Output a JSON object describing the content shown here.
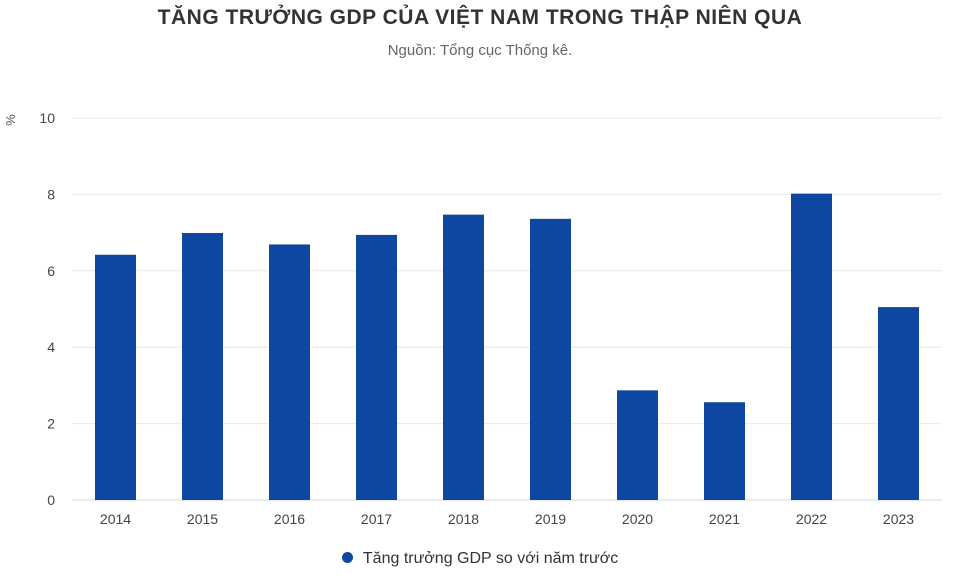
{
  "chart_data": {
    "type": "bar",
    "title": "TĂNG TRƯỞNG GDP CỦA VIỆT NAM TRONG THẬP NIÊN QUA",
    "subtitle": "Nguồn: Tổng cục Thống kê.",
    "xlabel": "",
    "ylabel": "%",
    "categories": [
      "2014",
      "2015",
      "2016",
      "2017",
      "2018",
      "2019",
      "2020",
      "2021",
      "2022",
      "2023"
    ],
    "series": [
      {
        "name": "Tăng trưởng GDP so với năm trước",
        "values": [
          6.42,
          6.99,
          6.69,
          6.94,
          7.47,
          7.36,
          2.87,
          2.56,
          8.02,
          5.05
        ],
        "color": "#0d47a1"
      }
    ],
    "ylim": [
      0,
      10
    ],
    "yticks": [
      "0",
      "2",
      "4",
      "6",
      "8",
      "10"
    ],
    "grid": true,
    "legend": "bottom-center"
  }
}
